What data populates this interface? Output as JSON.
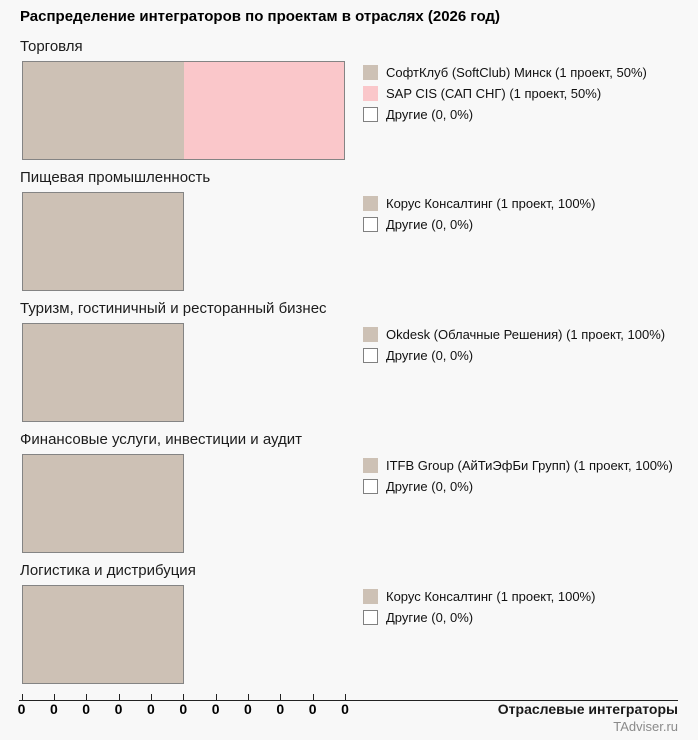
{
  "page": {
    "watermark": "TAdviser.ru"
  },
  "colors": {
    "background": "#f8f8f8",
    "bar_border": "#848484",
    "primary_tan": "#cdc1b5",
    "secondary_pink": "#fac7ca",
    "others_white": "#ffffff",
    "watermark_gray": "#8a8a8a"
  },
  "chart_data": {
    "type": "bar",
    "orientation": "horizontal_stacked",
    "title": "Распределение интеграторов по проектам в отраслях (2026 год)",
    "xlabel": "Отраслевые интеграторы",
    "x_tick_labels": [
      "0",
      "0",
      "0",
      "0",
      "0",
      "0",
      "0",
      "0",
      "0",
      "0",
      "0"
    ],
    "bar_scale_note": "bar width proportional to total projects; 2 projects = full width",
    "max_total_projects": 2,
    "categories": [
      "Торговля",
      "Пищевая промышленность",
      "Туризм, гостиничный и ресторанный бизнес",
      "Финансовые услуги, инвестиции и аудит",
      "Логистика и дистрибуция"
    ],
    "groups": [
      {
        "category": "Торговля",
        "segments": [
          {
            "name": "СофтКлуб (SoftClub) Минск",
            "projects": 1,
            "percent": 50,
            "color": "#cdc1b5",
            "outlined": false,
            "legend_label": "СофтКлуб (SoftClub) Минск (1 проект, 50%)"
          },
          {
            "name": "SAP CIS (САП СНГ)",
            "projects": 1,
            "percent": 50,
            "color": "#fac7ca",
            "outlined": false,
            "legend_label": "SAP CIS (САП СНГ) (1 проект, 50%)"
          },
          {
            "name": "Другие",
            "projects": 0,
            "percent": 0,
            "color": "#ffffff",
            "outlined": true,
            "legend_label": "Другие (0, 0%)"
          }
        ]
      },
      {
        "category": "Пищевая промышленность",
        "segments": [
          {
            "name": "Корус Консалтинг",
            "projects": 1,
            "percent": 100,
            "color": "#cdc1b5",
            "outlined": false,
            "legend_label": "Корус Консалтинг (1 проект, 100%)"
          },
          {
            "name": "Другие",
            "projects": 0,
            "percent": 0,
            "color": "#ffffff",
            "outlined": true,
            "legend_label": "Другие (0, 0%)"
          }
        ]
      },
      {
        "category": "Туризм, гостиничный и ресторанный бизнес",
        "segments": [
          {
            "name": "Okdesk (Облачные Решения)",
            "projects": 1,
            "percent": 100,
            "color": "#cdc1b5",
            "outlined": false,
            "legend_label": "Okdesk (Облачные Решения) (1 проект, 100%)"
          },
          {
            "name": "Другие",
            "projects": 0,
            "percent": 0,
            "color": "#ffffff",
            "outlined": true,
            "legend_label": "Другие (0, 0%)"
          }
        ]
      },
      {
        "category": "Финансовые услуги, инвестиции и аудит",
        "segments": [
          {
            "name": "ITFB Group (АйТиЭфБи Групп)",
            "projects": 1,
            "percent": 100,
            "color": "#cdc1b5",
            "outlined": false,
            "legend_label": "ITFB Group (АйТиЭфБи Групп) (1 проект, 100%)"
          },
          {
            "name": "Другие",
            "projects": 0,
            "percent": 0,
            "color": "#ffffff",
            "outlined": true,
            "legend_label": "Другие (0, 0%)"
          }
        ]
      },
      {
        "category": "Логистика и дистрибуция",
        "segments": [
          {
            "name": "Корус Консалтинг",
            "projects": 1,
            "percent": 100,
            "color": "#cdc1b5",
            "outlined": false,
            "legend_label": "Корус Консалтинг (1 проект, 100%)"
          },
          {
            "name": "Другие",
            "projects": 0,
            "percent": 0,
            "color": "#ffffff",
            "outlined": true,
            "legend_label": "Другие (0, 0%)"
          }
        ]
      }
    ]
  }
}
